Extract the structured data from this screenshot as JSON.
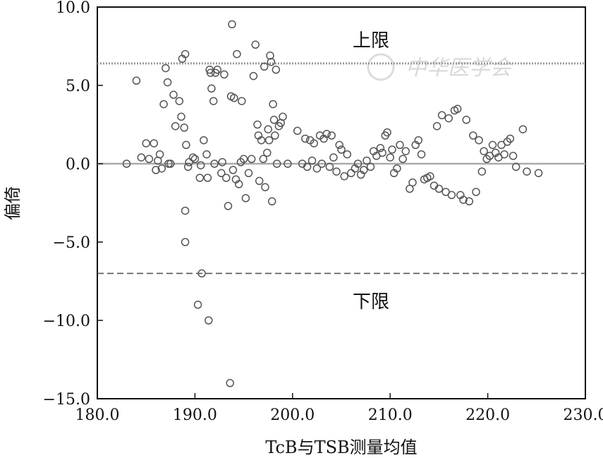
{
  "chart_data": {
    "type": "scatter",
    "title": "",
    "xlabel": "TcB与TSB测量均值",
    "ylabel": "偏倚",
    "xlim": [
      180.0,
      230.0
    ],
    "ylim": [
      -15.0,
      10.0
    ],
    "x_ticks": [
      180.0,
      190.0,
      200.0,
      210.0,
      220.0,
      230.0
    ],
    "x_tick_labels": [
      "180.0",
      "190.0",
      "200.0",
      "210.0",
      "220.0",
      "230.0"
    ],
    "y_ticks": [
      10.0,
      5.0,
      0.0,
      -5.0,
      -10.0,
      -15.0
    ],
    "y_tick_labels": [
      "10.0",
      "5.0",
      "0.0",
      "−5.0",
      "−10.0",
      "−15.0"
    ],
    "grid": false,
    "reference_lines": [
      {
        "name": "上限",
        "y": 6.4,
        "style": "dotted",
        "color": "#999999"
      },
      {
        "name": "mean",
        "y": 0.0,
        "style": "solid",
        "color": "#aaaaaa"
      },
      {
        "name": "下限",
        "y": -7.0,
        "style": "dashed",
        "color": "#555555"
      }
    ],
    "annotations": {
      "upper": "上限",
      "lower": "下限"
    },
    "marker_color": "#555555",
    "points": [
      [
        183.0,
        0.0
      ],
      [
        184.0,
        5.3
      ],
      [
        184.5,
        0.4
      ],
      [
        185.0,
        1.3
      ],
      [
        185.3,
        0.3
      ],
      [
        185.8,
        1.3
      ],
      [
        186.0,
        -0.4
      ],
      [
        186.2,
        0.2
      ],
      [
        186.4,
        0.6
      ],
      [
        186.6,
        -0.3
      ],
      [
        186.8,
        3.8
      ],
      [
        187.0,
        6.1
      ],
      [
        187.2,
        5.2
      ],
      [
        187.3,
        0.0
      ],
      [
        187.5,
        0.0
      ],
      [
        187.8,
        4.4
      ],
      [
        188.0,
        2.4
      ],
      [
        188.4,
        4.0
      ],
      [
        188.6,
        3.0
      ],
      [
        188.7,
        6.7
      ],
      [
        188.9,
        2.3
      ],
      [
        189.0,
        7.0
      ],
      [
        189.0,
        -3.0
      ],
      [
        189.1,
        1.2
      ],
      [
        189.3,
        -0.2
      ],
      [
        189.4,
        0.1
      ],
      [
        189.0,
        -5.0
      ],
      [
        189.8,
        0.4
      ],
      [
        190.0,
        0.3
      ],
      [
        190.3,
        -9.0
      ],
      [
        190.5,
        -0.9
      ],
      [
        190.6,
        -0.1
      ],
      [
        190.7,
        -7.0
      ],
      [
        190.9,
        1.5
      ],
      [
        191.2,
        0.6
      ],
      [
        191.3,
        -0.9
      ],
      [
        191.4,
        -10.0
      ],
      [
        191.5,
        6.0
      ],
      [
        191.6,
        5.8
      ],
      [
        191.7,
        4.8
      ],
      [
        191.9,
        4.0
      ],
      [
        192.0,
        0.0
      ],
      [
        192.1,
        5.8
      ],
      [
        192.3,
        6.0
      ],
      [
        192.7,
        -0.6
      ],
      [
        192.8,
        0.1
      ],
      [
        193.0,
        5.7
      ],
      [
        193.2,
        -0.9
      ],
      [
        193.4,
        -2.7
      ],
      [
        193.6,
        -14.0
      ],
      [
        193.7,
        4.3
      ],
      [
        193.8,
        8.9
      ],
      [
        193.9,
        -0.4
      ],
      [
        194.0,
        4.2
      ],
      [
        194.2,
        -1.0
      ],
      [
        194.3,
        7.0
      ],
      [
        194.5,
        -1.3
      ],
      [
        194.7,
        0.1
      ],
      [
        194.8,
        4.0
      ],
      [
        195.0,
        0.3
      ],
      [
        195.2,
        -2.2
      ],
      [
        195.5,
        -0.6
      ],
      [
        195.8,
        0.3
      ],
      [
        196.0,
        5.6
      ],
      [
        196.2,
        7.6
      ],
      [
        196.4,
        2.5
      ],
      [
        196.5,
        1.8
      ],
      [
        196.6,
        -1.1
      ],
      [
        196.8,
        1.5
      ],
      [
        197.0,
        0.3
      ],
      [
        197.1,
        6.2
      ],
      [
        197.2,
        -1.5
      ],
      [
        197.4,
        0.7
      ],
      [
        197.5,
        2.2
      ],
      [
        197.6,
        1.5
      ],
      [
        197.7,
        6.9
      ],
      [
        197.8,
        6.5
      ],
      [
        197.9,
        -2.4
      ],
      [
        198.0,
        3.8
      ],
      [
        198.1,
        2.8
      ],
      [
        198.2,
        1.8
      ],
      [
        198.3,
        6.0
      ],
      [
        198.4,
        0.0
      ],
      [
        198.6,
        2.4
      ],
      [
        198.8,
        2.6
      ],
      [
        199.0,
        3.0
      ],
      [
        199.5,
        0.0
      ],
      [
        200.5,
        2.1
      ],
      [
        201.0,
        0.0
      ],
      [
        201.3,
        1.6
      ],
      [
        201.5,
        -0.2
      ],
      [
        201.8,
        1.5
      ],
      [
        202.0,
        0.2
      ],
      [
        202.2,
        1.3
      ],
      [
        202.5,
        -0.3
      ],
      [
        202.8,
        1.8
      ],
      [
        203.0,
        0.0
      ],
      [
        203.2,
        1.6
      ],
      [
        203.5,
        1.9
      ],
      [
        203.8,
        -0.2
      ],
      [
        204.0,
        1.8
      ],
      [
        204.2,
        0.4
      ],
      [
        204.5,
        -0.5
      ],
      [
        204.8,
        1.2
      ],
      [
        205.0,
        0.9
      ],
      [
        205.3,
        -0.8
      ],
      [
        205.6,
        0.6
      ],
      [
        206.0,
        -0.6
      ],
      [
        206.4,
        -0.3
      ],
      [
        206.7,
        0.0
      ],
      [
        207.0,
        -0.7
      ],
      [
        207.3,
        -0.4
      ],
      [
        207.6,
        0.2
      ],
      [
        208.0,
        -0.2
      ],
      [
        208.3,
        0.8
      ],
      [
        208.6,
        0.5
      ],
      [
        209.0,
        1.0
      ],
      [
        209.2,
        0.7
      ],
      [
        209.5,
        1.8
      ],
      [
        209.7,
        2.0
      ],
      [
        210.0,
        0.4
      ],
      [
        210.2,
        0.9
      ],
      [
        210.4,
        -0.6
      ],
      [
        210.7,
        -0.3
      ],
      [
        211.0,
        1.2
      ],
      [
        211.3,
        0.3
      ],
      [
        211.6,
        0.8
      ],
      [
        212.0,
        -1.6
      ],
      [
        212.3,
        -1.2
      ],
      [
        212.6,
        1.2
      ],
      [
        212.9,
        1.5
      ],
      [
        213.2,
        0.6
      ],
      [
        213.5,
        -1.0
      ],
      [
        213.8,
        -0.9
      ],
      [
        214.1,
        -0.8
      ],
      [
        214.5,
        -1.4
      ],
      [
        214.8,
        2.4
      ],
      [
        215.0,
        -1.6
      ],
      [
        215.3,
        3.1
      ],
      [
        215.7,
        -1.8
      ],
      [
        216.0,
        2.9
      ],
      [
        216.3,
        -2.0
      ],
      [
        216.6,
        3.4
      ],
      [
        216.9,
        3.5
      ],
      [
        217.2,
        -2.0
      ],
      [
        217.5,
        -2.3
      ],
      [
        217.8,
        2.8
      ],
      [
        218.1,
        -2.4
      ],
      [
        218.5,
        1.8
      ],
      [
        218.8,
        -1.8
      ],
      [
        219.1,
        1.5
      ],
      [
        219.4,
        -0.5
      ],
      [
        219.6,
        0.8
      ],
      [
        219.9,
        0.3
      ],
      [
        220.2,
        0.5
      ],
      [
        220.5,
        1.2
      ],
      [
        220.8,
        0.7
      ],
      [
        221.1,
        0.4
      ],
      [
        221.4,
        1.2
      ],
      [
        221.7,
        0.6
      ],
      [
        222.0,
        1.4
      ],
      [
        222.3,
        1.6
      ],
      [
        222.6,
        0.5
      ],
      [
        222.9,
        -0.2
      ],
      [
        223.6,
        2.2
      ],
      [
        224.0,
        -0.5
      ],
      [
        225.2,
        -0.6
      ]
    ]
  },
  "watermark": "中华医学会"
}
